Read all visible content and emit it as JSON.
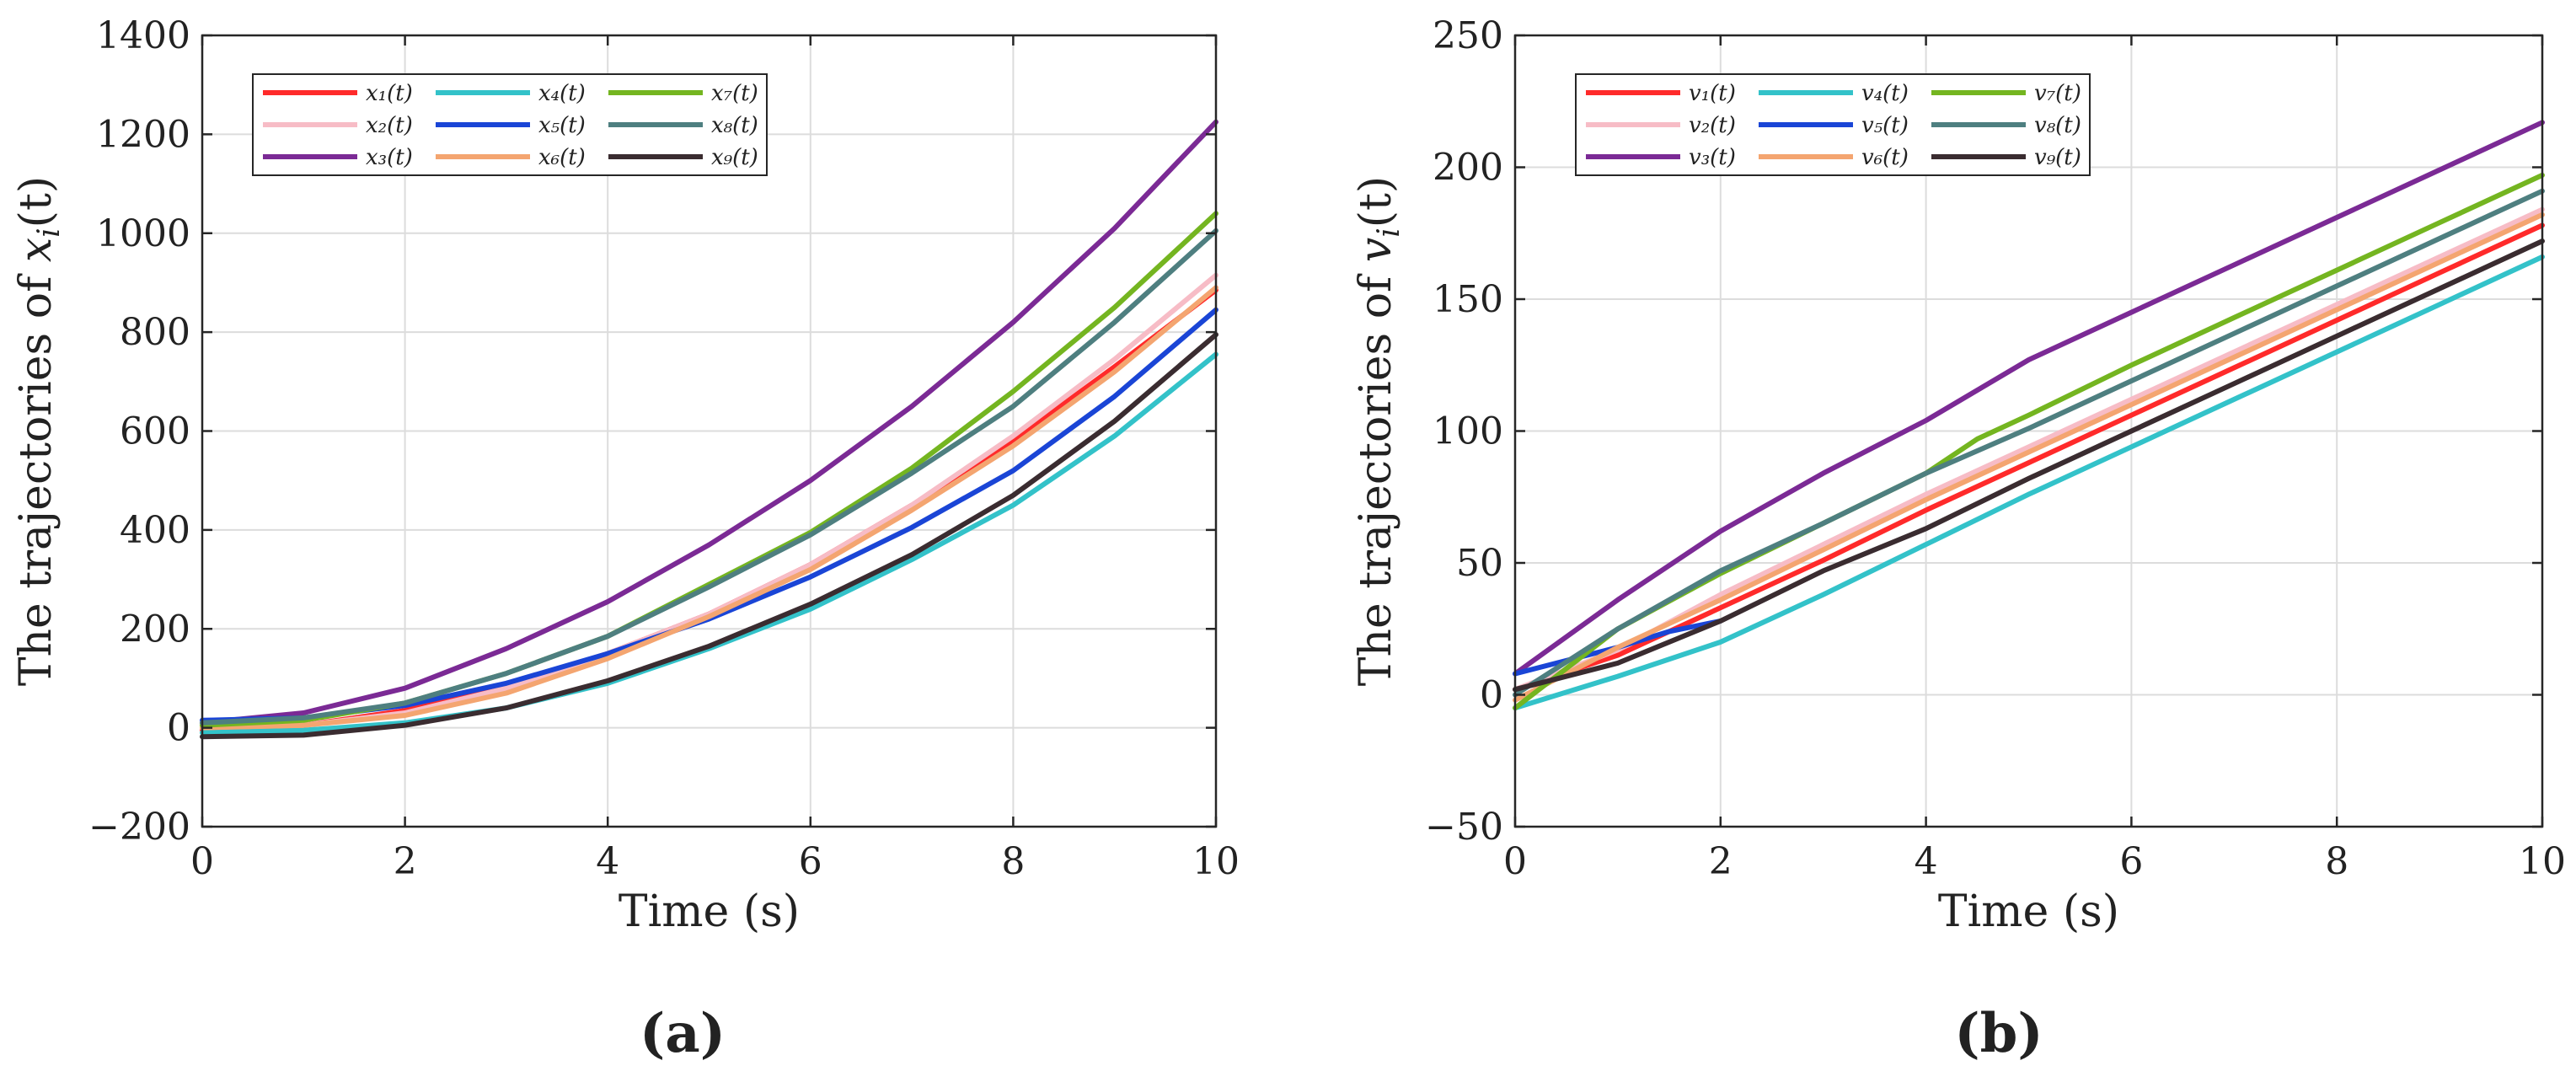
{
  "chart_data": [
    {
      "type": "line",
      "panel_label": "(a)",
      "xlabel": "Time (s)",
      "ylabel": "The trajectories of x_i(t)",
      "ylabel_parts": {
        "pre": "The trajectories of ",
        "var": "x",
        "sub": "i",
        "post": "(t)"
      },
      "xlim": [
        0,
        10
      ],
      "ylim": [
        -200,
        1400
      ],
      "xticks": [
        0,
        2,
        4,
        6,
        8,
        10
      ],
      "yticks": [
        -200,
        0,
        200,
        400,
        600,
        800,
        1000,
        1200,
        1400
      ],
      "ytick_labels": [
        "−200",
        "0",
        "200",
        "400",
        "600",
        "800",
        "1000",
        "1200",
        "1400"
      ],
      "grid": true,
      "legend_position": "top-left",
      "series": [
        {
          "name": "x₁(t)",
          "color": "#ff2a2a",
          "x": [
            0,
            1,
            2,
            3,
            4,
            5,
            6,
            7,
            8,
            9,
            10
          ],
          "y": [
            -5,
            5,
            35,
            85,
            150,
            230,
            330,
            450,
            580,
            730,
            885
          ]
        },
        {
          "name": "x₂(t)",
          "color": "#f7bcc6",
          "x": [
            0,
            1,
            2,
            3,
            4,
            5,
            6,
            7,
            8,
            9,
            10
          ],
          "y": [
            0,
            5,
            30,
            80,
            150,
            230,
            330,
            450,
            590,
            745,
            915
          ]
        },
        {
          "name": "x₃(t)",
          "color": "#7b2a95",
          "x": [
            0,
            1,
            2,
            3,
            4,
            5,
            6,
            7,
            8,
            9,
            10
          ],
          "y": [
            10,
            30,
            80,
            160,
            255,
            370,
            500,
            650,
            820,
            1010,
            1225
          ]
        },
        {
          "name": "x₄(t)",
          "color": "#33c2c9",
          "x": [
            0,
            1,
            2,
            3,
            4,
            5,
            6,
            7,
            8,
            9,
            10
          ],
          "y": [
            -10,
            -5,
            10,
            40,
            90,
            160,
            240,
            340,
            450,
            590,
            755
          ]
        },
        {
          "name": "x₅(t)",
          "color": "#1a45d6",
          "x": [
            0,
            1,
            2,
            3,
            4,
            5,
            6,
            7,
            8,
            9,
            10
          ],
          "y": [
            15,
            20,
            45,
            90,
            150,
            220,
            305,
            405,
            520,
            670,
            845
          ]
        },
        {
          "name": "x₆(t)",
          "color": "#f4a570",
          "x": [
            0,
            1,
            2,
            3,
            4,
            5,
            6,
            7,
            8,
            9,
            10
          ],
          "y": [
            0,
            5,
            25,
            70,
            140,
            225,
            320,
            440,
            570,
            720,
            890
          ]
        },
        {
          "name": "x₇(t)",
          "color": "#74b520",
          "x": [
            0,
            1,
            2,
            3,
            4,
            5,
            6,
            7,
            8,
            9,
            10
          ],
          "y": [
            5,
            15,
            50,
            110,
            185,
            290,
            395,
            525,
            680,
            850,
            1040
          ]
        },
        {
          "name": "x₈(t)",
          "color": "#4e7f80",
          "x": [
            0,
            1,
            2,
            3,
            4,
            5,
            6,
            7,
            8,
            9,
            10
          ],
          "y": [
            10,
            20,
            50,
            110,
            185,
            285,
            390,
            515,
            650,
            820,
            1005
          ]
        },
        {
          "name": "x₉(t)",
          "color": "#3a2c30",
          "x": [
            0,
            1,
            2,
            3,
            4,
            5,
            6,
            7,
            8,
            9,
            10
          ],
          "y": [
            -18,
            -15,
            5,
            40,
            95,
            165,
            250,
            350,
            470,
            620,
            795
          ]
        }
      ]
    },
    {
      "type": "line",
      "panel_label": "(b)",
      "xlabel": "Time (s)",
      "ylabel": "The trajectories of v_i(t)",
      "ylabel_parts": {
        "pre": "The trajectories of ",
        "var": "v",
        "sub": "i",
        "post": "(t)"
      },
      "xlim": [
        0,
        10
      ],
      "ylim": [
        -50,
        250
      ],
      "xticks": [
        0,
        2,
        4,
        6,
        8,
        10
      ],
      "yticks": [
        -50,
        0,
        50,
        100,
        150,
        200,
        250
      ],
      "ytick_labels": [
        "−50",
        "0",
        "50",
        "100",
        "150",
        "200",
        "250"
      ],
      "grid": true,
      "legend_position": "top-left",
      "series": [
        {
          "name": "v₁(t)",
          "color": "#ff2a2a",
          "x": [
            0,
            1,
            2,
            3,
            4,
            5,
            6,
            7,
            8,
            9,
            10
          ],
          "y": [
            2,
            15,
            33,
            51,
            70,
            88,
            106,
            124,
            142,
            160,
            178
          ]
        },
        {
          "name": "v₂(t)",
          "color": "#f7bcc6",
          "x": [
            0,
            1,
            2,
            3,
            4,
            5,
            6,
            7,
            8,
            9,
            10
          ],
          "y": [
            2,
            17,
            38,
            57,
            76,
            94,
            112,
            130,
            148,
            166,
            184
          ]
        },
        {
          "name": "v₃(t)",
          "color": "#7b2a95",
          "x": [
            0,
            1,
            2,
            3,
            4,
            5,
            6,
            7,
            8,
            9,
            10
          ],
          "y": [
            8,
            36,
            62,
            84,
            104,
            127,
            145,
            163,
            181,
            199,
            217
          ]
        },
        {
          "name": "v₄(t)",
          "color": "#33c2c9",
          "x": [
            0,
            1,
            2,
            3,
            4,
            5,
            6,
            7,
            8,
            9,
            10
          ],
          "y": [
            -5,
            7,
            20,
            38,
            57,
            76,
            94,
            112,
            130,
            148,
            166
          ]
        },
        {
          "name": "v₅(t)",
          "color": "#1a45d6",
          "x": [
            0,
            1,
            1.5,
            2
          ],
          "y": [
            8,
            18,
            24,
            28
          ]
        },
        {
          "name": "v₆(t)",
          "color": "#f4a570",
          "x": [
            0,
            1,
            2,
            3,
            4,
            5,
            6,
            7,
            8,
            9,
            10
          ],
          "y": [
            -2,
            18,
            36,
            55,
            74,
            92,
            110,
            128,
            146,
            164,
            182
          ]
        },
        {
          "name": "v₇(t)",
          "color": "#74b520",
          "x": [
            0,
            1,
            2,
            3,
            4,
            4.5,
            5,
            6,
            7,
            8,
            9,
            10
          ],
          "y": [
            -5,
            25,
            46,
            65,
            84,
            97,
            106,
            125,
            143,
            161,
            179,
            197
          ]
        },
        {
          "name": "v₈(t)",
          "color": "#4e7f80",
          "x": [
            0,
            1,
            2,
            3,
            4,
            5,
            6,
            7,
            8,
            9,
            10
          ],
          "y": [
            0,
            25,
            47,
            65,
            84,
            101,
            119,
            137,
            155,
            173,
            191
          ]
        },
        {
          "name": "v₉(t)",
          "color": "#3a2c30",
          "x": [
            0,
            1,
            2,
            3,
            4,
            5,
            6,
            7,
            8,
            9,
            10
          ],
          "y": [
            2,
            12,
            28,
            47,
            63,
            82,
            100,
            118,
            136,
            154,
            172
          ]
        }
      ]
    }
  ]
}
